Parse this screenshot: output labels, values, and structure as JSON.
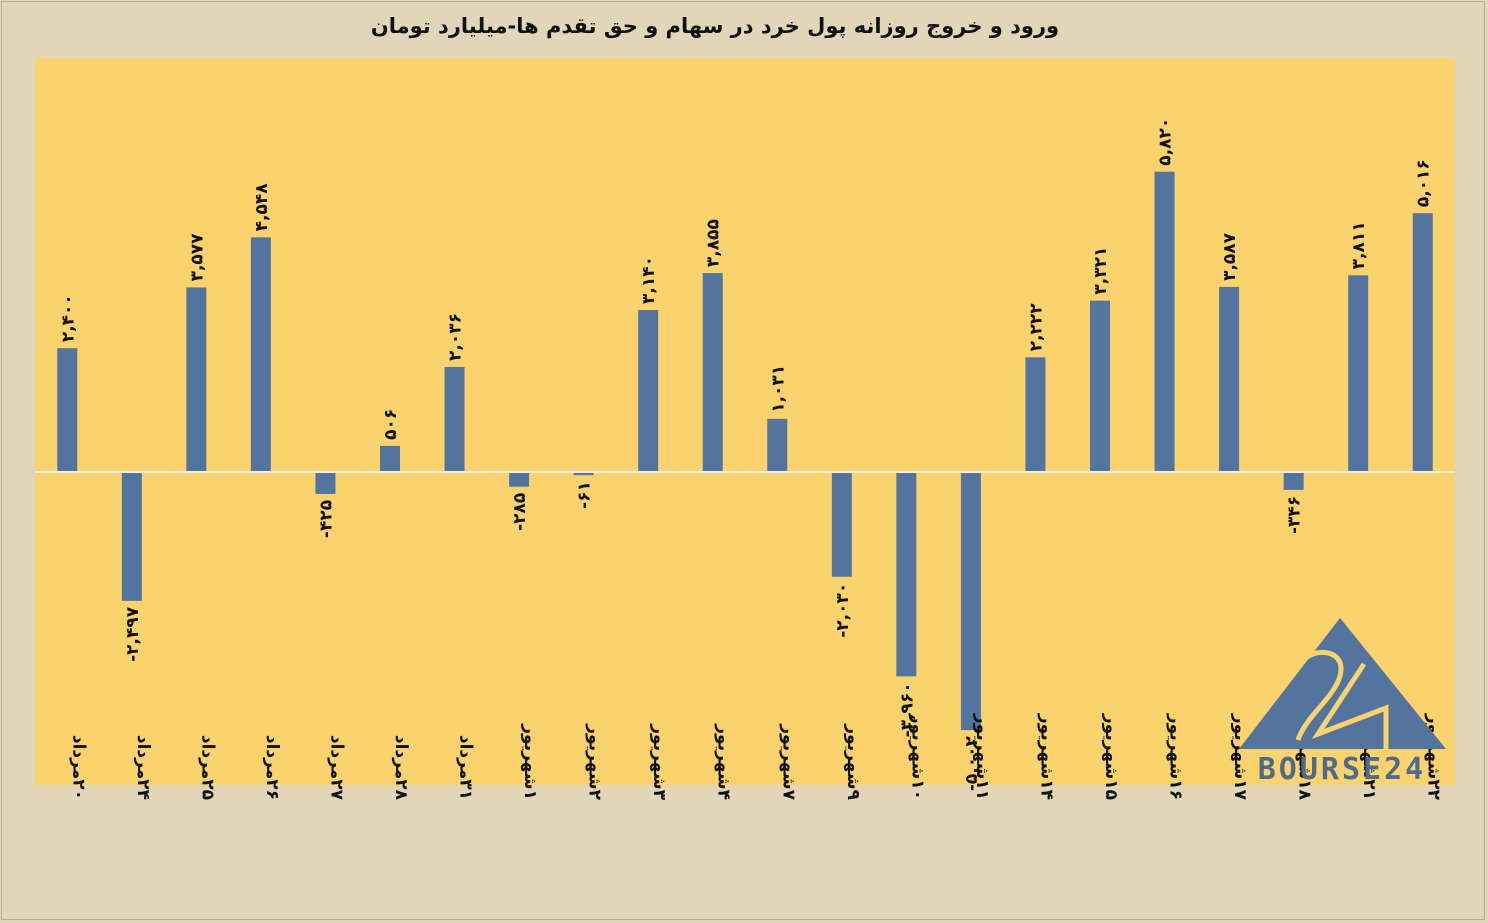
{
  "chart_data": {
    "type": "bar",
    "title": "ورود و خروج روزانه پول خرد در سهام و حق تقدم ها-میلیارد تومان",
    "xlabel": "",
    "ylabel": "",
    "categories": [
      "۲۰مرداد",
      "۲۴مرداد",
      "۲۵مرداد",
      "۲۶مرداد",
      "۲۷مرداد",
      "۲۸مرداد",
      "۳۱مرداد",
      "۱شهریور",
      "۲شهریور",
      "۳شهریور",
      "۴شهریور",
      "۷شهریور",
      "۹شهریور",
      "۱۰شهریور",
      "۱۱شهریور",
      "۱۴شهریور",
      "۱۵شهریور",
      "۱۶شهریور",
      "۱۷شهریور",
      "۱۸شهریور",
      "۲۱شهریور",
      "۲۲شهریور"
    ],
    "values": [
      2400,
      -2497,
      3577,
      4548,
      -425,
      506,
      2036,
      -285,
      -61,
      3140,
      3855,
      1031,
      -2030,
      -3960,
      -5002,
      2222,
      3321,
      5820,
      3587,
      -346,
      3811,
      5016
    ],
    "value_labels": [
      "۲,۴۰۰",
      "-۲,۴۹۷",
      "۳,۵۷۷",
      "۴,۵۴۸",
      "-۴۲۵",
      "۵۰۶",
      "۲,۰۳۶",
      "-۲۸۵",
      "-۶۱",
      "۳,۱۴۰",
      "۳,۸۵۵",
      "۱,۰۳۱",
      "-۲,۰۳۰",
      "-۳,۹۶۰",
      "-۵,۰۰۲",
      "۲,۲۲۲",
      "۳,۳۲۱",
      "۵,۸۲۰",
      "۳,۵۸۷",
      "-۳۴۶",
      "۳,۸۱۱",
      "۵,۰۱۶"
    ],
    "ylim": [
      -6050,
      8000
    ],
    "grid": false,
    "legend": "none",
    "colors": {
      "bar": "#52749e",
      "plot_background": "#fbd36e",
      "page_background": "#e2d6b8",
      "zero_line": "#f3efe2"
    }
  },
  "watermark": {
    "icon": "bourse24-triangle-logo",
    "text": "BOURSE24",
    "color": "#4f6b8c"
  }
}
